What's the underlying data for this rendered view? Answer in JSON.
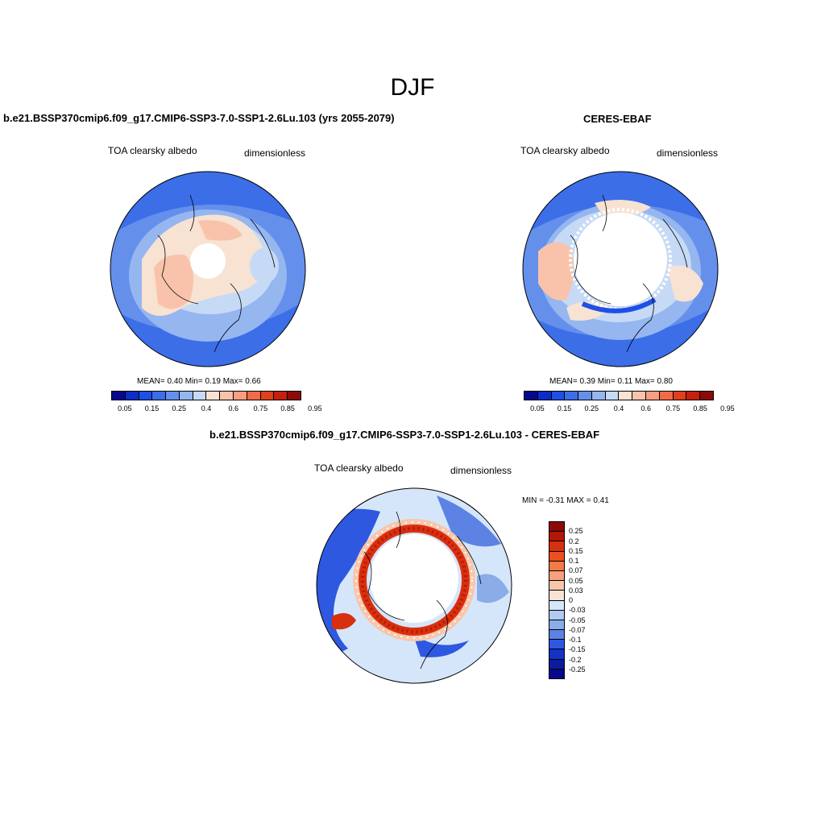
{
  "season": "DJF",
  "colors": {
    "abs": [
      "#08088c",
      "#0c2cc8",
      "#1e50e6",
      "#3c6ee8",
      "#6490ec",
      "#96b6f0",
      "#c6daf6",
      "#f8e2d2",
      "#f9c3ab",
      "#f79f80",
      "#f06c48",
      "#e0401c",
      "#c4200e",
      "#8c0a08"
    ],
    "diff": [
      "#8c0a08",
      "#b41608",
      "#d8300e",
      "#ec5020",
      "#f47a48",
      "#f6a07c",
      "#f8c6aa",
      "#f8e4d4",
      "#d6e6fa",
      "#b0caf2",
      "#8aace8",
      "#5c82e4",
      "#2e58e0",
      "#1232c8",
      "#0a1ca0",
      "#08088c"
    ]
  },
  "panels": [
    {
      "title": "b.e21.BSSP370cmip6.f09_g17.CMIP6-SSP3-7.0-SSP1-2.6Lu.103 (yrs 2055-2079)",
      "left_label": "TOA clearsky albedo",
      "right_label": "dimensionless",
      "stats": "MEAN=   0.40  Min=   0.19  Max=   0.66",
      "ticks": [
        "0.05",
        "0.15",
        "0.25",
        "0.4",
        "0.6",
        "0.75",
        "0.85",
        "0.95"
      ]
    },
    {
      "title": "CERES-EBAF",
      "left_label": "TOA clearsky albedo",
      "right_label": "dimensionless",
      "stats": "MEAN=   0.39  Min=   0.11  Max=   0.80",
      "ticks": [
        "0.05",
        "0.15",
        "0.25",
        "0.4",
        "0.6",
        "0.75",
        "0.85",
        "0.95"
      ]
    },
    {
      "title": "b.e21.BSSP370cmip6.f09_g17.CMIP6-SSP3-7.0-SSP1-2.6Lu.103 - CERES-EBAF",
      "left_label": "TOA clearsky albedo",
      "right_label": "dimensionless",
      "stats": "MIN =  -0.31 MAX =   0.41",
      "ticks": [
        "0.25",
        "0.2",
        "0.15",
        "0.1",
        "0.07",
        "0.05",
        "0.03",
        "0",
        "-0.03",
        "-0.05",
        "-0.07",
        "-0.1",
        "-0.15",
        "-0.2",
        "-0.25"
      ]
    }
  ]
}
